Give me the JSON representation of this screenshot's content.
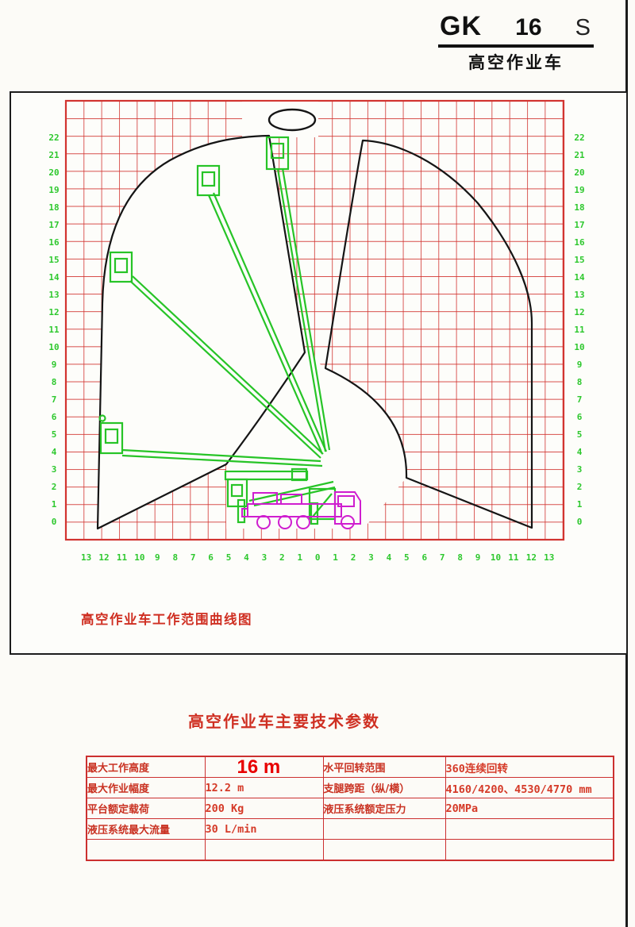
{
  "logo": {
    "brand": "GK",
    "model": "16",
    "suffix": "S",
    "subtitle": "高空作业车"
  },
  "chart": {
    "caption": "高空作业车工作范围曲线图",
    "left_ticks": [
      "22",
      "21",
      "20",
      "19",
      "18",
      "17",
      "16",
      "15",
      "14",
      "13",
      "12",
      "11",
      "10",
      "9",
      "8",
      "7",
      "6",
      "5",
      "4",
      "3",
      "2",
      "1",
      "0"
    ],
    "right_ticks": [
      "22",
      "21",
      "20",
      "19",
      "18",
      "17",
      "16",
      "15",
      "14",
      "13",
      "12",
      "11",
      "10",
      "9",
      "8",
      "7",
      "6",
      "5",
      "4",
      "3",
      "2",
      "1",
      "0"
    ],
    "bottom_ticks": [
      "13",
      "12",
      "11",
      "10",
      "9",
      "8",
      "7",
      "6",
      "5",
      "4",
      "3",
      "2",
      "1",
      "0",
      "1",
      "2",
      "3",
      "4",
      "5",
      "6",
      "7",
      "8",
      "9",
      "10",
      "11",
      "12",
      "13"
    ],
    "colors": {
      "grid": "#d23430",
      "boom": "#27c427",
      "truck": "#cf1ecf",
      "tick": "#2ec82e",
      "outline": "#151515"
    }
  },
  "params": {
    "title": "高空作业车主要技术参数",
    "rows": [
      {
        "label_left": "最大工作高度",
        "value_left": "16 m",
        "big": true,
        "label_right": "水平回转范围",
        "value_right": "360连续回转"
      },
      {
        "label_left": "最大作业幅度",
        "value_left": "12.2 m",
        "big": false,
        "label_right": "支腿跨距（纵/横）",
        "value_right": "4160/4200、4530/4770 mm"
      },
      {
        "label_left": "平台额定载荷",
        "value_left": "200 Kg",
        "big": false,
        "label_right": "液压系统额定压力",
        "value_right": "20MPa"
      },
      {
        "label_left": "液压系统最大流量",
        "value_left": "30 L/min",
        "big": false,
        "label_right": "",
        "value_right": ""
      },
      {
        "label_left": "",
        "value_left": "",
        "big": false,
        "label_right": "",
        "value_right": ""
      }
    ]
  }
}
